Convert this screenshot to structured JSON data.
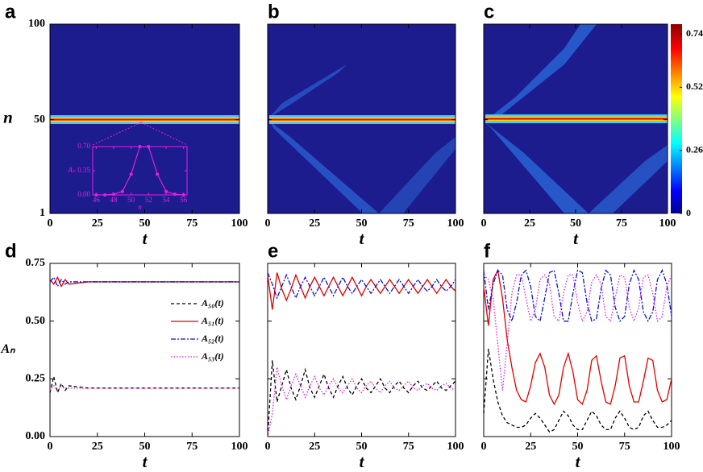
{
  "chart_data": [
    {
      "type": "heatmap",
      "label": "a",
      "xlabel": "t",
      "ylabel": "n",
      "xlim": [
        0,
        100
      ],
      "ylim": [
        1,
        100
      ],
      "xticks": [
        0,
        25,
        50,
        75,
        100
      ],
      "yticks": [
        1,
        50,
        100
      ]
    },
    {
      "type": "inset",
      "xlabel": "n",
      "ylabel": "Aₙ",
      "x": [
        46,
        47,
        48,
        49,
        50,
        51,
        52,
        53,
        54,
        55,
        56
      ],
      "values": [
        0,
        0,
        0.01,
        0.05,
        0.3,
        0.7,
        0.7,
        0.3,
        0.05,
        0.01,
        0
      ],
      "color": "#e020e0",
      "xlim": [
        45.6,
        56.4
      ],
      "ylim": [
        0,
        0.7
      ],
      "xticks": [
        46,
        48,
        50,
        52,
        54,
        56
      ],
      "yticks": [
        {
          "value": 0,
          "label": "0.00"
        },
        {
          "value": 0.35,
          "label": "0.35"
        },
        {
          "value": 0.7,
          "label": "0.70"
        }
      ]
    },
    {
      "type": "heatmap",
      "label": "b",
      "xlabel": "t",
      "xlim": [
        0,
        100
      ],
      "ylim": [
        1,
        100
      ],
      "xticks": [
        0,
        25,
        50,
        75,
        100
      ],
      "yticks": [
        1,
        50,
        100
      ]
    },
    {
      "type": "heatmap",
      "label": "c",
      "xlabel": "t",
      "xlim": [
        0,
        100
      ],
      "ylim": [
        1,
        100
      ],
      "xticks": [
        0,
        25,
        50,
        75,
        100
      ],
      "yticks": [
        1,
        50,
        100
      ]
    },
    {
      "type": "colorbar",
      "ylim": [
        0,
        0.78
      ],
      "yticks": [
        0,
        0.26,
        0.52,
        0.74
      ]
    },
    {
      "type": "line",
      "label": "d",
      "xlabel": "t",
      "ylabel": "Aₙ",
      "xlim": [
        0,
        100
      ],
      "ylim": [
        0,
        0.75
      ],
      "xticks": [
        0,
        25,
        50,
        75,
        100
      ],
      "yticks": [
        {
          "value": 0,
          "label": "0.00"
        },
        {
          "value": 0.25,
          "label": "0.25"
        },
        {
          "value": 0.5,
          "label": "0.50"
        },
        {
          "value": 0.75,
          "label": "0.75"
        }
      ],
      "ytick_labels": true,
      "legend": "right",
      "x": [
        0,
        2,
        4,
        6,
        8,
        10,
        20,
        30,
        40,
        50,
        60,
        70,
        80,
        90,
        100
      ],
      "series": [
        {
          "name": "A₅₀(t)",
          "color": "#000000",
          "dash": "4,3",
          "values": [
            0.19,
            0.26,
            0.19,
            0.23,
            0.2,
            0.22,
            0.21,
            0.21,
            0.21,
            0.21,
            0.21,
            0.21,
            0.21,
            0.21,
            0.21
          ]
        },
        {
          "name": "A₅₁(t)",
          "color": "#e00000",
          "dash": "",
          "values": [
            0.68,
            0.66,
            0.69,
            0.65,
            0.68,
            0.66,
            0.67,
            0.67,
            0.67,
            0.67,
            0.67,
            0.67,
            0.67,
            0.67,
            0.67
          ]
        },
        {
          "name": "A₅₂(t)",
          "color": "#1010d0",
          "dash": "6,2,2,2",
          "values": [
            0.67,
            0.69,
            0.65,
            0.68,
            0.66,
            0.67,
            0.67,
            0.67,
            0.67,
            0.67,
            0.67,
            0.67,
            0.67,
            0.67,
            0.67
          ]
        },
        {
          "name": "A₅₃(t)",
          "color": "#e020e0",
          "dash": "1.5,2",
          "values": [
            0.2,
            0.22,
            0.2,
            0.22,
            0.21,
            0.21,
            0.21,
            0.21,
            0.21,
            0.21,
            0.21,
            0.21,
            0.21,
            0.21,
            0.21
          ]
        }
      ]
    },
    {
      "type": "line",
      "label": "e",
      "xlabel": "t",
      "xlim": [
        0,
        100
      ],
      "ylim": [
        0,
        0.75
      ],
      "xticks": [
        0,
        25,
        50,
        75,
        100
      ],
      "yticks": [
        0,
        0.25,
        0.5,
        0.75
      ],
      "ytick_labels": false,
      "x": [
        0,
        2.5,
        5,
        7.5,
        10,
        12.5,
        15,
        17.5,
        20,
        22.5,
        25,
        27.5,
        30,
        32.5,
        35,
        37.5,
        40,
        42.5,
        45,
        47.5,
        50,
        52.5,
        55,
        57.5,
        60,
        62.5,
        65,
        67.5,
        70,
        72.5,
        75,
        77.5,
        80,
        82.5,
        85,
        87.5,
        90,
        92.5,
        95,
        97.5,
        100
      ],
      "series": [
        {
          "name": "A₅₀(t)",
          "color": "#000000",
          "dash": "4,3",
          "values": [
            0,
            0.33,
            0.15,
            0.22,
            0.29,
            0.21,
            0.16,
            0.22,
            0.29,
            0.21,
            0.17,
            0.22,
            0.27,
            0.21,
            0.17,
            0.22,
            0.26,
            0.21,
            0.18,
            0.22,
            0.25,
            0.21,
            0.19,
            0.22,
            0.25,
            0.21,
            0.19,
            0.22,
            0.24,
            0.21,
            0.19,
            0.22,
            0.24,
            0.21,
            0.2,
            0.22,
            0.24,
            0.21,
            0.2,
            0.22,
            0.24
          ]
        },
        {
          "name": "A₅₁(t)",
          "color": "#e00000",
          "dash": "",
          "values": [
            0.7,
            0.55,
            0.71,
            0.64,
            0.59,
            0.64,
            0.7,
            0.65,
            0.6,
            0.65,
            0.69,
            0.65,
            0.61,
            0.65,
            0.69,
            0.65,
            0.61,
            0.65,
            0.69,
            0.65,
            0.61,
            0.65,
            0.68,
            0.65,
            0.62,
            0.65,
            0.68,
            0.65,
            0.62,
            0.65,
            0.68,
            0.65,
            0.62,
            0.65,
            0.68,
            0.65,
            0.62,
            0.65,
            0.68,
            0.65,
            0.63
          ]
        },
        {
          "name": "A₅₂(t)",
          "color": "#1010d0",
          "dash": "6,2,2,2",
          "values": [
            0.71,
            0.66,
            0.6,
            0.65,
            0.7,
            0.65,
            0.6,
            0.65,
            0.69,
            0.65,
            0.61,
            0.65,
            0.69,
            0.65,
            0.61,
            0.65,
            0.69,
            0.65,
            0.62,
            0.65,
            0.68,
            0.65,
            0.62,
            0.65,
            0.68,
            0.65,
            0.62,
            0.65,
            0.68,
            0.65,
            0.62,
            0.65,
            0.68,
            0.65,
            0.63,
            0.65,
            0.68,
            0.65,
            0.63,
            0.65,
            0.68
          ]
        },
        {
          "name": "A₅₃(t)",
          "color": "#e020e0",
          "dash": "1.5,2",
          "values": [
            0,
            0.1,
            0.3,
            0.22,
            0.16,
            0.22,
            0.27,
            0.22,
            0.17,
            0.22,
            0.26,
            0.21,
            0.18,
            0.22,
            0.25,
            0.21,
            0.19,
            0.22,
            0.25,
            0.21,
            0.19,
            0.22,
            0.24,
            0.21,
            0.19,
            0.22,
            0.24,
            0.21,
            0.2,
            0.22,
            0.24,
            0.21,
            0.2,
            0.22,
            0.23,
            0.21,
            0.2,
            0.22,
            0.23,
            0.21,
            0.2
          ]
        }
      ]
    },
    {
      "type": "line",
      "label": "f",
      "xlabel": "t",
      "xlim": [
        0,
        100
      ],
      "ylim": [
        0,
        0.75
      ],
      "xticks": [
        0,
        25,
        50,
        75,
        100
      ],
      "yticks": [
        0,
        0.25,
        0.5,
        0.75
      ],
      "ytick_labels": false,
      "x": [
        0,
        2.5,
        5,
        7.5,
        10,
        12.5,
        15,
        17.5,
        20,
        22.5,
        25,
        27.5,
        30,
        32.5,
        35,
        37.5,
        40,
        42.5,
        45,
        47.5,
        50,
        52.5,
        55,
        57.5,
        60,
        62.5,
        65,
        67.5,
        70,
        72.5,
        75,
        77.5,
        80,
        82.5,
        85,
        87.5,
        90,
        92.5,
        95,
        97.5,
        100
      ],
      "series": [
        {
          "name": "A₅₀(t)",
          "color": "#000000",
          "dash": "4,3",
          "values": [
            0.1,
            0.38,
            0.25,
            0.15,
            0.09,
            0.06,
            0.05,
            0.04,
            0.04,
            0.05,
            0.08,
            0.1,
            0.08,
            0.05,
            0.02,
            0.03,
            0.07,
            0.11,
            0.09,
            0.05,
            0.03,
            0.03,
            0.07,
            0.11,
            0.09,
            0.05,
            0.03,
            0.03,
            0.08,
            0.11,
            0.08,
            0.04,
            0.03,
            0.04,
            0.09,
            0.11,
            0.07,
            0.04,
            0.04,
            0.05,
            0.07
          ]
        },
        {
          "name": "A₅₁(t)",
          "color": "#e00000",
          "dash": "",
          "values": [
            0.65,
            0.48,
            0.68,
            0.72,
            0.6,
            0.42,
            0.3,
            0.2,
            0.16,
            0.15,
            0.22,
            0.32,
            0.36,
            0.3,
            0.18,
            0.14,
            0.18,
            0.3,
            0.36,
            0.28,
            0.16,
            0.14,
            0.2,
            0.33,
            0.35,
            0.24,
            0.15,
            0.14,
            0.22,
            0.34,
            0.35,
            0.22,
            0.15,
            0.15,
            0.24,
            0.34,
            0.33,
            0.2,
            0.15,
            0.16,
            0.25
          ]
        },
        {
          "name": "A₅₂(t)",
          "color": "#1010d0",
          "dash": "6,2,2,2",
          "values": [
            0.72,
            0.55,
            0.66,
            0.72,
            0.7,
            0.55,
            0.5,
            0.58,
            0.7,
            0.72,
            0.65,
            0.52,
            0.5,
            0.6,
            0.71,
            0.72,
            0.62,
            0.5,
            0.5,
            0.62,
            0.72,
            0.71,
            0.58,
            0.5,
            0.51,
            0.64,
            0.72,
            0.7,
            0.56,
            0.5,
            0.52,
            0.66,
            0.72,
            0.68,
            0.54,
            0.5,
            0.54,
            0.68,
            0.72,
            0.66,
            0.52
          ]
        },
        {
          "name": "A₅₃(t)",
          "color": "#e020e0",
          "dash": "1.5,2",
          "values": [
            0.7,
            0.68,
            0.6,
            0.4,
            0.2,
            0.4,
            0.62,
            0.7,
            0.7,
            0.6,
            0.5,
            0.55,
            0.68,
            0.7,
            0.66,
            0.52,
            0.5,
            0.62,
            0.7,
            0.7,
            0.58,
            0.5,
            0.54,
            0.67,
            0.7,
            0.66,
            0.52,
            0.5,
            0.6,
            0.7,
            0.69,
            0.56,
            0.5,
            0.56,
            0.69,
            0.7,
            0.62,
            0.5,
            0.52,
            0.65,
            0.7
          ]
        }
      ]
    }
  ]
}
